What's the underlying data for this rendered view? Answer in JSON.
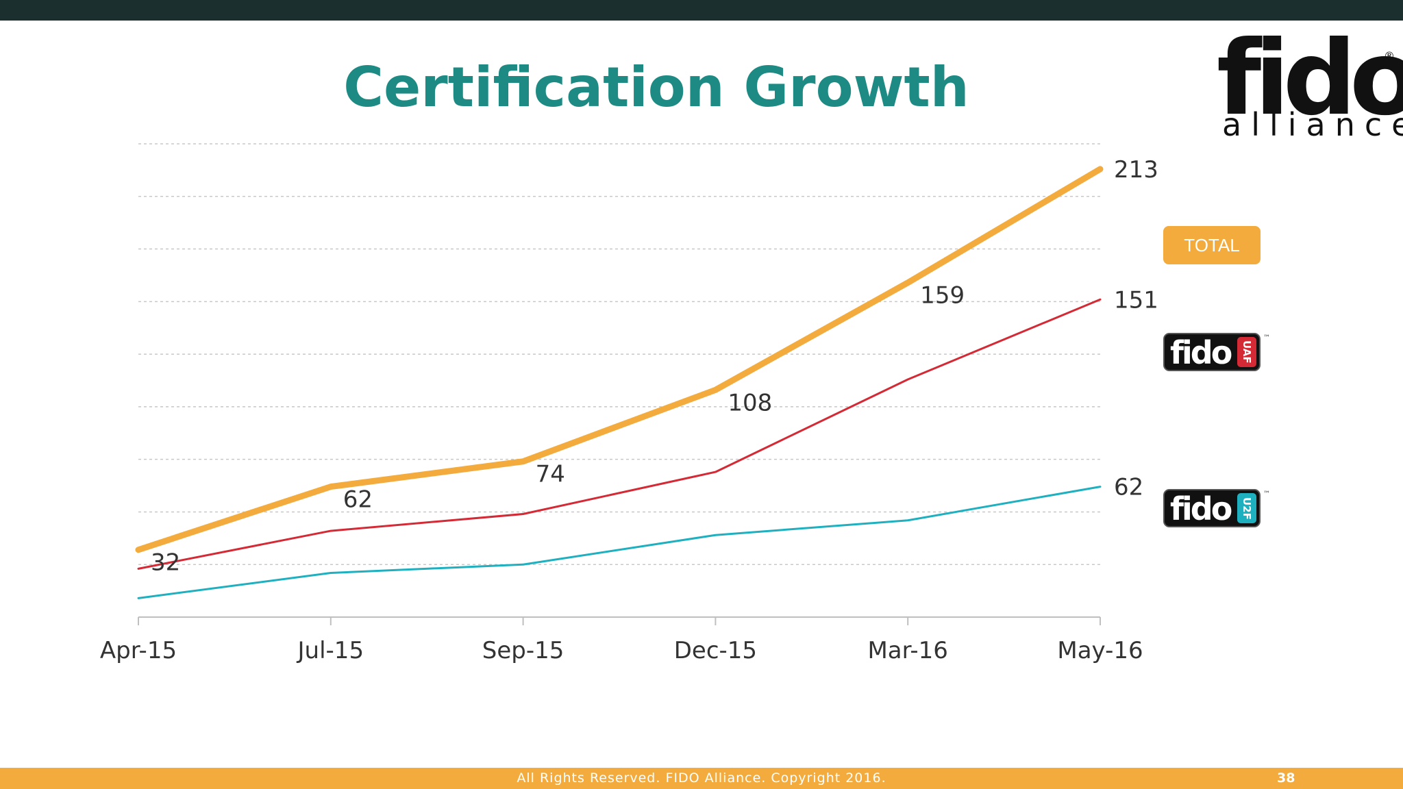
{
  "slide": {
    "title": "Certification Growth",
    "logo": {
      "word": "fido",
      "tagline": "alliance",
      "mark": "®"
    },
    "badges": {
      "total": "TOTAL",
      "uaf": {
        "word": "fido",
        "tab": "UAF",
        "mark": "™"
      },
      "u2f": {
        "word": "fido",
        "tab": "U2F",
        "mark": "™"
      }
    },
    "footer": {
      "text": "All Rights Reserved. FIDO Alliance. Copyright 2016.",
      "page": "38"
    }
  },
  "colors": {
    "total": "#f2ab3c",
    "uaf": "#d32a35",
    "u2f": "#1fb0c0",
    "title": "#1d8a83",
    "topbar": "#1b2f2f"
  },
  "chart_data": {
    "type": "line",
    "title": "",
    "xlabel": "",
    "ylabel": "",
    "categories": [
      "Apr-15",
      "Jul-15",
      "Sep-15",
      "Dec-15",
      "Mar-16",
      "May-16"
    ],
    "ylim": [
      0,
      225
    ],
    "grid": true,
    "series": [
      {
        "name": "TOTAL",
        "values": [
          32,
          62,
          74,
          108,
          159,
          213
        ],
        "labels": [
          "32",
          "62",
          "74",
          "108",
          "159",
          "213"
        ]
      },
      {
        "name": "UAF",
        "values": [
          23,
          41,
          49,
          69,
          113,
          151
        ],
        "labels": [
          "",
          "",
          "",
          "",
          "",
          "151"
        ]
      },
      {
        "name": "U2F",
        "values": [
          9,
          21,
          25,
          39,
          46,
          62
        ],
        "labels": [
          "",
          "",
          "",
          "",
          "",
          "62"
        ]
      }
    ]
  }
}
